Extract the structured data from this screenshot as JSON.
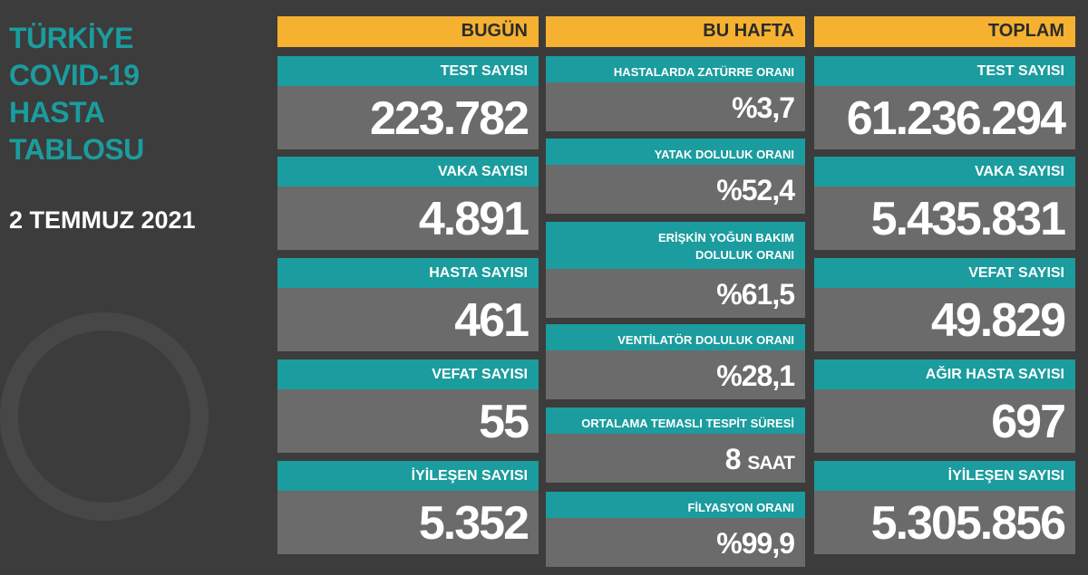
{
  "title": [
    "TÜRKİYE",
    "COVID-19",
    "HASTA",
    "TABLOSU"
  ],
  "date": "2 TEMMUZ 2021",
  "colors": {
    "teal": "#1b9c9e",
    "yellow": "#f5b12f",
    "body": "#6b6b6b",
    "background": "#3c3c3c"
  },
  "today": {
    "header": "BUGÜN",
    "items": [
      {
        "label": "TEST SAYISI",
        "value": "223.782"
      },
      {
        "label": "VAKA SAYISI",
        "value": "4.891"
      },
      {
        "label": "HASTA SAYISI",
        "value": "461"
      },
      {
        "label": "VEFAT SAYISI",
        "value": "55"
      },
      {
        "label": "İYİLEŞEN SAYISI",
        "value": "5.352"
      }
    ]
  },
  "week": {
    "header": "BU HAFTA",
    "items": [
      {
        "label": "HASTALARDA ZATÜRRE ORANI",
        "value": "%3,7"
      },
      {
        "label": "YATAK DOLULUK ORANI",
        "value": "%52,4"
      },
      {
        "label": "ERİŞKİN YOĞUN BAKIM DOLULUK ORANI",
        "value": "%61,5"
      },
      {
        "label": "VENTİLATÖR DOLULUK ORANI",
        "value": "%28,1"
      },
      {
        "label": "ORTALAMA TEMASLI TESPİT SÜRESİ",
        "value": "8",
        "unit": "SAAT"
      },
      {
        "label": "FİLYASYON ORANI",
        "value": "%99,9"
      }
    ]
  },
  "total": {
    "header": "TOPLAM",
    "items": [
      {
        "label": "TEST SAYISI",
        "value": "61.236.294"
      },
      {
        "label": "VAKA SAYISI",
        "value": "5.435.831"
      },
      {
        "label": "VEFAT SAYISI",
        "value": "49.829"
      },
      {
        "label": "AĞIR HASTA SAYISI",
        "value": "697"
      },
      {
        "label": "İYİLEŞEN SAYISI",
        "value": "5.305.856"
      }
    ]
  }
}
